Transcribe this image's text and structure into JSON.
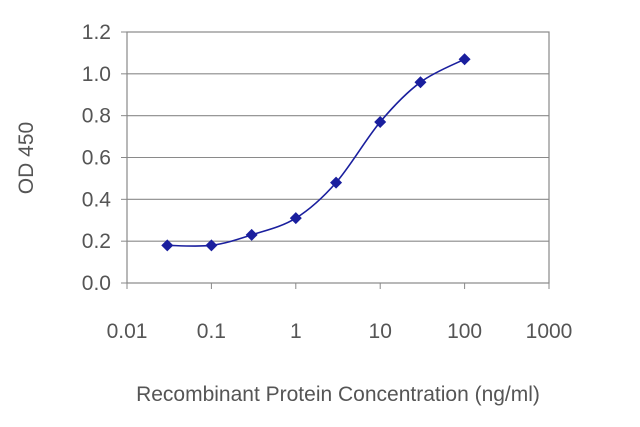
{
  "chart_data": {
    "type": "line",
    "title": "",
    "xlabel": "Recombinant Protein Concentration (ng/ml)",
    "ylabel": "OD 450",
    "x_scale": "log",
    "xlim": [
      0.01,
      1000
    ],
    "ylim": [
      0.0,
      1.2
    ],
    "x_ticks": [
      "0.01",
      "0.1",
      "1",
      "10",
      "100",
      "1000"
    ],
    "y_ticks": [
      "0.0",
      "0.2",
      "0.4",
      "0.6",
      "0.8",
      "1.0",
      "1.2"
    ],
    "grid": "horizontal",
    "legend": "none",
    "series": [
      {
        "color": "#1a1f9e",
        "marker": "diamond",
        "x": [
          0.03,
          0.1,
          0.3,
          1,
          3,
          10,
          30,
          100
        ],
        "y": [
          0.18,
          0.18,
          0.23,
          0.31,
          0.48,
          0.77,
          0.96,
          1.07
        ]
      }
    ]
  }
}
